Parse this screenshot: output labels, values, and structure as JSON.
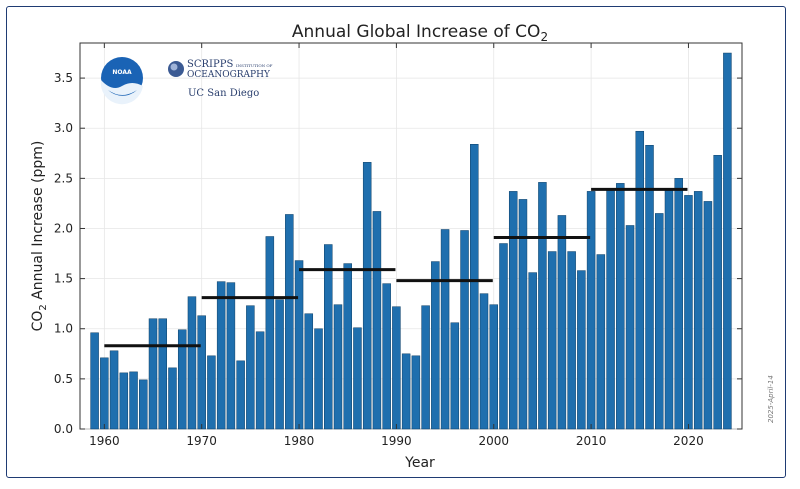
{
  "logos": {
    "noaa": "NOAA",
    "scripps_line1": "SCRIPPS",
    "scripps_small": "INSTITUTION OF",
    "scripps_line2": "OCEANOGRAPHY",
    "ucsd": "UC San Diego"
  },
  "stamp": "2025-April-14",
  "colors": {
    "bar": "#1f6fae",
    "bar_edge": "#0d3f66",
    "decade_line": "#111111",
    "frame": "#1f3b73"
  },
  "chart_data": {
    "type": "bar",
    "title_main": "Annual Global Increase of CO",
    "title_sub": "2",
    "xlabel": "Year",
    "ylabel_pre": "CO",
    "ylabel_sub": "2",
    "ylabel_post": " Annual Increase (ppm)",
    "xlim": [
      1957.5,
      2025.5
    ],
    "ylim": [
      0,
      3.85
    ],
    "xticks": [
      1960,
      1970,
      1980,
      1990,
      2000,
      2010,
      2020
    ],
    "yticks": [
      0.0,
      0.5,
      1.0,
      1.5,
      2.0,
      2.5,
      3.0,
      3.5
    ],
    "ytick_labels": [
      "0.0",
      "0.5",
      "1.0",
      "1.5",
      "2.0",
      "2.5",
      "3.0",
      "3.5"
    ],
    "grid": true,
    "x": [
      1959,
      1960,
      1961,
      1962,
      1963,
      1964,
      1965,
      1966,
      1967,
      1968,
      1969,
      1970,
      1971,
      1972,
      1973,
      1974,
      1975,
      1976,
      1977,
      1978,
      1979,
      1980,
      1981,
      1982,
      1983,
      1984,
      1985,
      1986,
      1987,
      1988,
      1989,
      1990,
      1991,
      1992,
      1993,
      1994,
      1995,
      1996,
      1997,
      1998,
      1999,
      2000,
      2001,
      2002,
      2003,
      2004,
      2005,
      2006,
      2007,
      2008,
      2009,
      2010,
      2011,
      2012,
      2013,
      2014,
      2015,
      2016,
      2017,
      2018,
      2019,
      2020,
      2021,
      2022,
      2023,
      2024
    ],
    "values": [
      0.96,
      0.71,
      0.78,
      0.56,
      0.57,
      0.49,
      1.1,
      1.1,
      0.61,
      0.99,
      1.32,
      1.13,
      0.73,
      1.47,
      1.46,
      0.68,
      1.23,
      0.97,
      1.92,
      1.29,
      2.14,
      1.68,
      1.15,
      1.0,
      1.84,
      1.24,
      1.65,
      1.01,
      2.66,
      2.17,
      1.45,
      1.22,
      0.75,
      0.73,
      1.23,
      1.67,
      1.99,
      1.06,
      1.98,
      2.84,
      1.35,
      1.24,
      1.85,
      2.37,
      2.29,
      1.56,
      2.46,
      1.77,
      2.13,
      1.77,
      1.58,
      2.37,
      1.74,
      2.4,
      2.45,
      2.03,
      2.97,
      2.83,
      2.15,
      2.4,
      2.5,
      2.33,
      2.37,
      2.27,
      2.73,
      3.75
    ],
    "decade_means": [
      {
        "start": 1960,
        "end": 1970,
        "value": 0.83
      },
      {
        "start": 1970,
        "end": 1980,
        "value": 1.31
      },
      {
        "start": 1980,
        "end": 1990,
        "value": 1.59
      },
      {
        "start": 1990,
        "end": 2000,
        "value": 1.48
      },
      {
        "start": 2000,
        "end": 2010,
        "value": 1.91
      },
      {
        "start": 2010,
        "end": 2020,
        "value": 2.39
      }
    ]
  }
}
